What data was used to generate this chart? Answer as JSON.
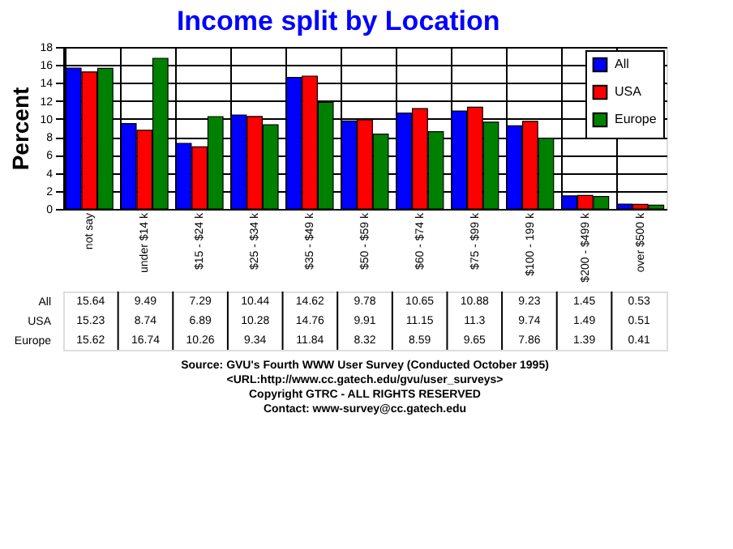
{
  "chart_data": {
    "type": "bar",
    "title": "Income split by Location",
    "ylabel": "Percent",
    "categories": [
      "not say",
      "under $14 k",
      "$15 - $24 k",
      "$25 - $34 k",
      "$35 - $49 k",
      "$50 - $59 k",
      "$60 - $74 k",
      "$75 - $99 k",
      "$100 - 199 k",
      "$200 - $499 k",
      "over $500 k"
    ],
    "series": [
      {
        "name": "All",
        "color": "#0000ff",
        "values": [
          15.64,
          9.49,
          7.29,
          10.44,
          14.62,
          9.78,
          10.65,
          10.88,
          9.23,
          1.45,
          0.53
        ]
      },
      {
        "name": "USA",
        "color": "#ff0000",
        "values": [
          15.23,
          8.74,
          6.89,
          10.28,
          14.76,
          9.91,
          11.15,
          11.3,
          9.74,
          1.49,
          0.51
        ]
      },
      {
        "name": "Europe",
        "color": "#008000",
        "values": [
          15.62,
          16.74,
          10.26,
          9.34,
          11.84,
          8.32,
          8.59,
          9.65,
          7.86,
          1.39,
          0.41
        ]
      }
    ],
    "ylim": [
      0,
      18
    ],
    "yticks": [
      0,
      2,
      4,
      6,
      8,
      10,
      12,
      14,
      16,
      18
    ],
    "grid": true,
    "legend": "top right",
    "data_labels": true,
    "annotations": [
      "Source: GVU's Fourth WWW User Survey (Conducted October 1995)",
      "<URL:http://www.cc.gatech.edu/gvu/user_surveys>",
      "Copyright GTRC -  ALL RIGHTS RESERVED",
      "Contact: www-survey@cc.gatech.edu"
    ]
  }
}
